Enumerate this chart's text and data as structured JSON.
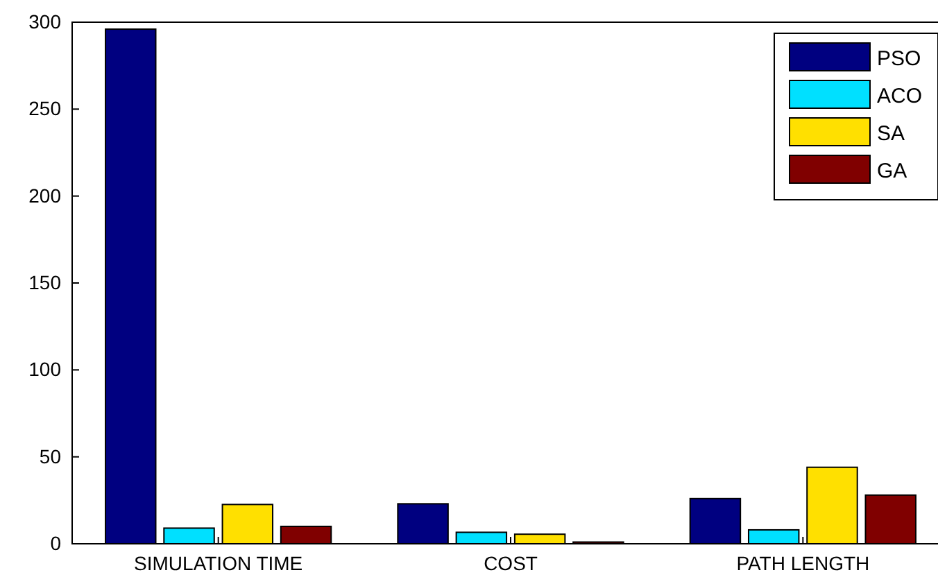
{
  "chart_data": {
    "type": "bar",
    "categories": [
      "SIMULATION TIME",
      "COST",
      "PATH LENGTH"
    ],
    "series": [
      {
        "name": "PSO",
        "color": "#000080",
        "values": [
          296,
          23,
          26
        ]
      },
      {
        "name": "ACO",
        "color": "#00e0ff",
        "values": [
          9,
          6.6,
          8
        ]
      },
      {
        "name": "SA",
        "color": "#ffe000",
        "values": [
          22.6,
          5.5,
          44
        ]
      },
      {
        "name": "GA",
        "color": "#800000",
        "values": [
          10,
          1,
          28
        ]
      }
    ],
    "ylim": [
      0,
      300
    ],
    "yticks": [
      0,
      50,
      100,
      150,
      200,
      250,
      300
    ],
    "grid": false,
    "legend": "top right"
  }
}
